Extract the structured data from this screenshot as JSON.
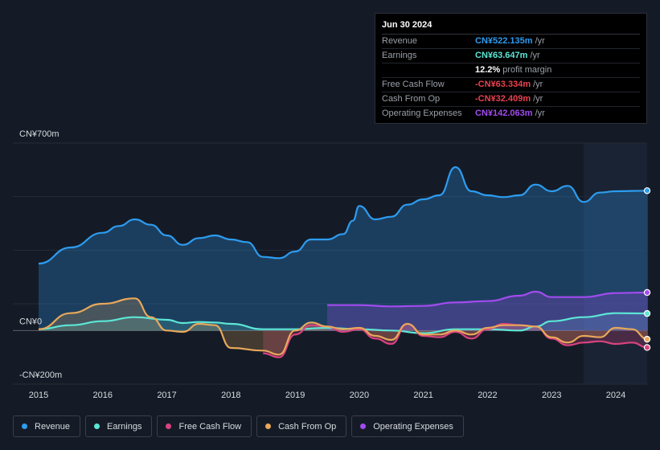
{
  "tooltip": {
    "date": "Jun 30 2024",
    "rows": [
      {
        "label": "Revenue",
        "value": "CN¥522.135m",
        "unit": "/yr",
        "color": "#2d9cf0"
      },
      {
        "label": "Earnings",
        "value": "CN¥63.647m",
        "unit": "/yr",
        "color": "#5ce6d6"
      },
      {
        "label": "",
        "value": "12.2%",
        "unit": "profit margin",
        "color": "#ffffff"
      },
      {
        "label": "Free Cash Flow",
        "value": "-CN¥63.334m",
        "unit": "/yr",
        "color": "#e8414f"
      },
      {
        "label": "Cash From Op",
        "value": "-CN¥32.409m",
        "unit": "/yr",
        "color": "#e8414f"
      },
      {
        "label": "Operating Expenses",
        "value": "CN¥142.063m",
        "unit": "/yr",
        "color": "#a24bf0"
      }
    ]
  },
  "legend": [
    {
      "label": "Revenue",
      "color": "#2d9cf0"
    },
    {
      "label": "Earnings",
      "color": "#5ce6d6"
    },
    {
      "label": "Free Cash Flow",
      "color": "#d9437f"
    },
    {
      "label": "Cash From Op",
      "color": "#e8a85a"
    },
    {
      "label": "Operating Expenses",
      "color": "#a24bf0"
    }
  ],
  "chart_data": {
    "type": "area",
    "title": "",
    "xlabel": "",
    "ylabel": "",
    "y_axis_labels": [
      "CN¥700m",
      "CN¥0",
      "-CN¥200m"
    ],
    "ylim": [
      -200,
      700
    ],
    "xlim": [
      2014.6,
      2024.5
    ],
    "x_ticks": [
      2015,
      2016,
      2017,
      2018,
      2019,
      2020,
      2021,
      2022,
      2023,
      2024
    ],
    "series": [
      {
        "name": "Revenue",
        "color": "#2d9cf0",
        "points": [
          [
            2015.0,
            250
          ],
          [
            2015.5,
            310
          ],
          [
            2016.0,
            365
          ],
          [
            2016.25,
            390
          ],
          [
            2016.5,
            415
          ],
          [
            2016.75,
            395
          ],
          [
            2017.0,
            355
          ],
          [
            2017.25,
            320
          ],
          [
            2017.5,
            345
          ],
          [
            2017.75,
            355
          ],
          [
            2018.0,
            340
          ],
          [
            2018.25,
            330
          ],
          [
            2018.5,
            275
          ],
          [
            2018.75,
            270
          ],
          [
            2019.0,
            295
          ],
          [
            2019.25,
            340
          ],
          [
            2019.5,
            340
          ],
          [
            2019.75,
            360
          ],
          [
            2019.9,
            410
          ],
          [
            2020.0,
            465
          ],
          [
            2020.25,
            415
          ],
          [
            2020.5,
            425
          ],
          [
            2020.75,
            470
          ],
          [
            2021.0,
            490
          ],
          [
            2021.25,
            505
          ],
          [
            2021.5,
            610
          ],
          [
            2021.75,
            520
          ],
          [
            2022.0,
            505
          ],
          [
            2022.25,
            498
          ],
          [
            2022.5,
            505
          ],
          [
            2022.75,
            545
          ],
          [
            2023.0,
            520
          ],
          [
            2023.25,
            540
          ],
          [
            2023.5,
            480
          ],
          [
            2023.75,
            515
          ],
          [
            2024.0,
            520
          ],
          [
            2024.5,
            522.135
          ]
        ]
      },
      {
        "name": "Earnings",
        "color": "#5ce6d6",
        "points": [
          [
            2015.0,
            5
          ],
          [
            2015.5,
            20
          ],
          [
            2016.0,
            35
          ],
          [
            2016.5,
            50
          ],
          [
            2017.0,
            40
          ],
          [
            2017.25,
            28
          ],
          [
            2017.5,
            32
          ],
          [
            2017.75,
            30
          ],
          [
            2018.0,
            25
          ],
          [
            2018.5,
            5
          ],
          [
            2019.0,
            5
          ],
          [
            2019.5,
            10
          ],
          [
            2020.0,
            5
          ],
          [
            2020.5,
            0
          ],
          [
            2021.0,
            -10
          ],
          [
            2021.5,
            5
          ],
          [
            2022.0,
            5
          ],
          [
            2022.5,
            0
          ],
          [
            2022.75,
            15
          ],
          [
            2023.0,
            35
          ],
          [
            2023.5,
            50
          ],
          [
            2024.0,
            65
          ],
          [
            2024.5,
            63.647
          ]
        ]
      },
      {
        "name": "Free Cash Flow",
        "color": "#d9437f",
        "start": 2018.5,
        "points": [
          [
            2018.5,
            -85
          ],
          [
            2018.75,
            -100
          ],
          [
            2019.0,
            -15
          ],
          [
            2019.25,
            20
          ],
          [
            2019.5,
            15
          ],
          [
            2019.75,
            -5
          ],
          [
            2020.0,
            5
          ],
          [
            2020.25,
            -30
          ],
          [
            2020.5,
            -50
          ],
          [
            2020.75,
            25
          ],
          [
            2021.0,
            -20
          ],
          [
            2021.25,
            -25
          ],
          [
            2021.5,
            -5
          ],
          [
            2021.75,
            -30
          ],
          [
            2022.0,
            5
          ],
          [
            2022.25,
            25
          ],
          [
            2022.5,
            20
          ],
          [
            2022.75,
            15
          ],
          [
            2023.0,
            -30
          ],
          [
            2023.25,
            -55
          ],
          [
            2023.5,
            -45
          ],
          [
            2023.75,
            -40
          ],
          [
            2024.0,
            -50
          ],
          [
            2024.25,
            -45
          ],
          [
            2024.5,
            -63.334
          ]
        ]
      },
      {
        "name": "Cash From Op",
        "color": "#e8a85a",
        "points": [
          [
            2015.0,
            5
          ],
          [
            2015.5,
            65
          ],
          [
            2016.0,
            100
          ],
          [
            2016.5,
            120
          ],
          [
            2016.75,
            50
          ],
          [
            2017.0,
            0
          ],
          [
            2017.25,
            -5
          ],
          [
            2017.5,
            25
          ],
          [
            2017.75,
            20
          ],
          [
            2018.0,
            -65
          ],
          [
            2018.5,
            -75
          ],
          [
            2018.75,
            -90
          ],
          [
            2019.0,
            0
          ],
          [
            2019.25,
            30
          ],
          [
            2019.5,
            15
          ],
          [
            2019.75,
            5
          ],
          [
            2020.0,
            10
          ],
          [
            2020.25,
            -20
          ],
          [
            2020.5,
            -35
          ],
          [
            2020.75,
            25
          ],
          [
            2021.0,
            -15
          ],
          [
            2021.25,
            -15
          ],
          [
            2021.5,
            0
          ],
          [
            2021.75,
            -15
          ],
          [
            2022.0,
            10
          ],
          [
            2022.25,
            20
          ],
          [
            2022.5,
            20
          ],
          [
            2022.75,
            15
          ],
          [
            2023.0,
            -25
          ],
          [
            2023.25,
            -45
          ],
          [
            2023.5,
            -20
          ],
          [
            2023.75,
            -25
          ],
          [
            2024.0,
            10
          ],
          [
            2024.25,
            5
          ],
          [
            2024.5,
            -32.409
          ]
        ]
      },
      {
        "name": "Operating Expenses",
        "color": "#a24bf0",
        "start": 2019.5,
        "points": [
          [
            2019.5,
            95
          ],
          [
            2020.0,
            95
          ],
          [
            2020.5,
            90
          ],
          [
            2021.0,
            92
          ],
          [
            2021.5,
            105
          ],
          [
            2022.0,
            110
          ],
          [
            2022.5,
            130
          ],
          [
            2022.75,
            145
          ],
          [
            2023.0,
            125
          ],
          [
            2023.5,
            125
          ],
          [
            2024.0,
            140
          ],
          [
            2024.5,
            142.063
          ]
        ]
      }
    ]
  }
}
